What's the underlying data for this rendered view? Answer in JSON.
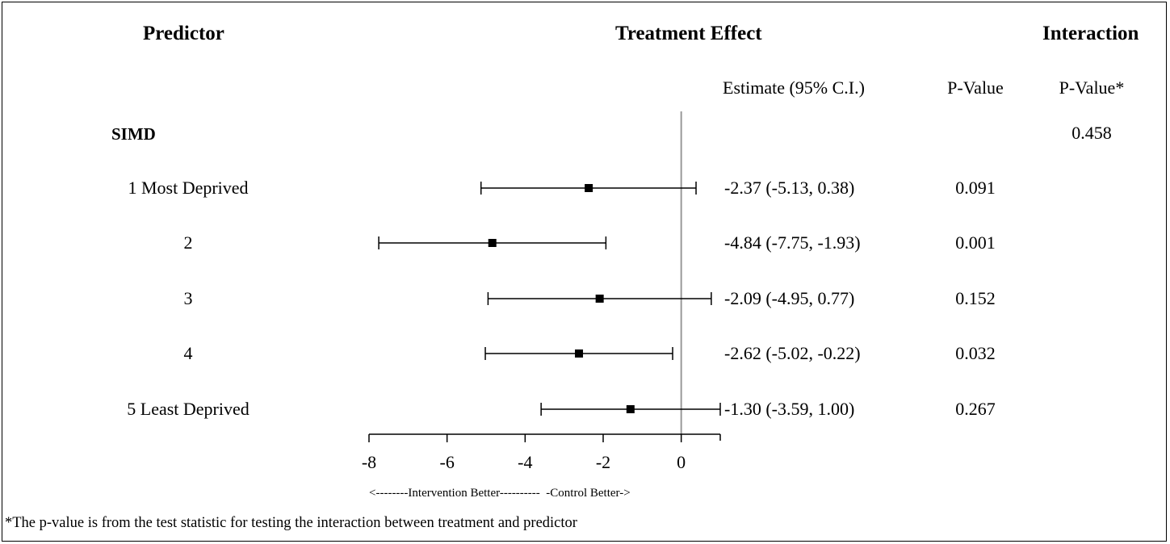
{
  "headers": {
    "predictor": "Predictor",
    "treatment_effect": "Treatment Effect",
    "interaction": "Interaction",
    "estimate_col": "Estimate (95% C.I.)",
    "pvalue_col": "P-Value",
    "interaction_pvalue_col": "P-Value*"
  },
  "group": {
    "label": "SIMD",
    "interaction_p": "0.458"
  },
  "rows": [
    {
      "label": "1 Most Deprived",
      "estimate_text": "-2.37 (-5.13, 0.38)",
      "p": "0.091"
    },
    {
      "label": "2",
      "estimate_text": "-4.84 (-7.75, -1.93)",
      "p": "0.001"
    },
    {
      "label": "3",
      "estimate_text": "-2.09 (-4.95, 0.77)",
      "p": "0.152"
    },
    {
      "label": "4",
      "estimate_text": "-2.62 (-5.02, -0.22)",
      "p": "0.032"
    },
    {
      "label": "5 Least Deprived",
      "estimate_text": "-1.30 (-3.59, 1.00)",
      "p": "0.267"
    }
  ],
  "axis_note": "<--------Intervention Better----------  -Control Better->",
  "footnote": "*The p-value is from the test statistic for testing the interaction between treatment and predictor",
  "chart_data": {
    "type": "forest",
    "xlim": [
      -8,
      1
    ],
    "xticks": [
      -8,
      -6,
      -4,
      -2,
      0
    ],
    "reference_line": 0,
    "grid": false,
    "series": [
      {
        "label": "1 Most Deprived",
        "estimate": -2.37,
        "lower": -5.13,
        "upper": 0.38
      },
      {
        "label": "2",
        "estimate": -4.84,
        "lower": -7.75,
        "upper": -1.93
      },
      {
        "label": "3",
        "estimate": -2.09,
        "lower": -4.95,
        "upper": 0.77
      },
      {
        "label": "4",
        "estimate": -2.62,
        "lower": -5.02,
        "upper": -0.22
      },
      {
        "label": "5 Least Deprived",
        "estimate": -1.3,
        "lower": -3.59,
        "upper": 1.0
      }
    ]
  }
}
